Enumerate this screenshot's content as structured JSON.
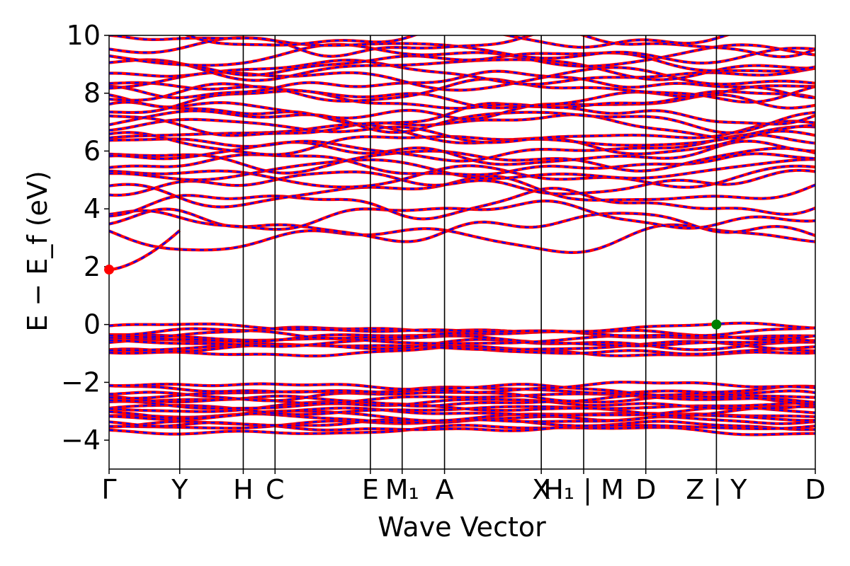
{
  "chart_data": {
    "type": "line",
    "xlabel": "Wave Vector",
    "ylabel": "E − E_f (eV)",
    "ylim": [
      -5,
      10
    ],
    "yticks": [
      "−4",
      "−2",
      "0",
      "2",
      "4",
      "6",
      "8",
      "10"
    ],
    "ytick_values": [
      -4,
      -2,
      0,
      2,
      4,
      6,
      8,
      10
    ],
    "xlim": [
      0,
      10
    ],
    "kpoints": [
      {
        "label": "Γ",
        "x": 0
      },
      {
        "label": "Y",
        "x": 1
      },
      {
        "label": "H",
        "x": 1.9
      },
      {
        "label": "C",
        "x": 2.35
      },
      {
        "label": "E",
        "x": 3.7
      },
      {
        "label": "M₁",
        "x": 4.15
      },
      {
        "label": "A",
        "x": 4.75
      },
      {
        "label": "X",
        "x": 6.12
      },
      {
        "label": "H₁ | M",
        "x": 6.72
      },
      {
        "label": "D",
        "x": 7.6
      },
      {
        "label": "Z | Y",
        "x": 8.6
      },
      {
        "label": "D",
        "x": 10
      }
    ],
    "series": [
      {
        "color": "#ff0000",
        "style": "solid"
      },
      {
        "color": "#0000ff",
        "style": "dashed"
      }
    ],
    "markers": [
      {
        "x": 0,
        "y": 1.9,
        "color": "#ff0000"
      },
      {
        "x": 8.6,
        "y": 0.0,
        "color": "#008000"
      }
    ],
    "grid": false
  }
}
